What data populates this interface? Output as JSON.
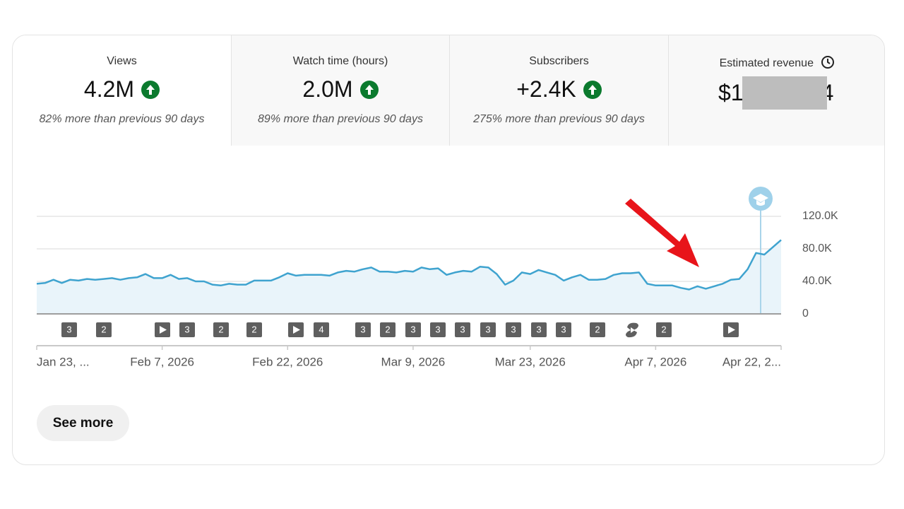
{
  "tabs": [
    {
      "title": "Views",
      "value": "4.2M",
      "comparison": "82% more than previous 90 days"
    },
    {
      "title": "Watch time (hours)",
      "value": "2.0M",
      "comparison": "89% more than previous 90 days"
    },
    {
      "title": "Subscribers",
      "value": "+2.4K",
      "comparison": "275% more than previous 90 days"
    },
    {
      "title": "Estimated revenue",
      "value_parts": [
        "$1",
        "4"
      ]
    }
  ],
  "chart_data": {
    "type": "line",
    "categories": [
      "Jan 23, ...",
      null,
      null,
      null,
      null,
      null,
      null,
      null,
      null,
      null,
      null,
      null,
      null,
      null,
      null,
      "Feb 7, 2026",
      null,
      null,
      null,
      null,
      null,
      null,
      null,
      null,
      null,
      null,
      null,
      null,
      null,
      null,
      "Feb 22, 2026",
      null,
      null,
      null,
      null,
      null,
      null,
      null,
      null,
      null,
      null,
      null,
      null,
      null,
      null,
      "Mar 9, 2026",
      null,
      null,
      null,
      null,
      null,
      null,
      null,
      null,
      null,
      null,
      null,
      null,
      null,
      "Mar 23, 2026",
      null,
      null,
      null,
      null,
      null,
      null,
      null,
      null,
      null,
      null,
      null,
      null,
      null,
      null,
      "Apr 7, 2026",
      null,
      null,
      null,
      null,
      null,
      null,
      null,
      null,
      null,
      null,
      null,
      null,
      null,
      null,
      "Apr 22, 2..."
    ],
    "values": [
      37000,
      38000,
      42000,
      38000,
      42000,
      41000,
      43000,
      42000,
      43000,
      44000,
      42000,
      44000,
      45000,
      49000,
      44000,
      44000,
      48000,
      43000,
      44000,
      40000,
      40000,
      36000,
      35000,
      37000,
      36000,
      36000,
      41000,
      41000,
      41000,
      45000,
      50000,
      47000,
      48000,
      48000,
      48000,
      47000,
      51000,
      53000,
      52000,
      55000,
      57000,
      52000,
      52000,
      51000,
      53000,
      52000,
      57000,
      55000,
      56000,
      48000,
      51000,
      53000,
      52000,
      58000,
      57000,
      49000,
      36000,
      41000,
      51000,
      49000,
      54000,
      51000,
      48000,
      41000,
      45000,
      48000,
      42000,
      42000,
      43000,
      48000,
      50000,
      50000,
      51000,
      37000,
      35000,
      35000,
      35000,
      32000,
      30000,
      34000,
      31000,
      34000,
      37000,
      42000,
      43000,
      55000,
      75000,
      73000,
      82000,
      91000
    ],
    "color": "#3fa3cf",
    "ylim": [
      0,
      120000
    ],
    "yticks": [
      0,
      {
        "value": 40000,
        "label": "40.0K"
      },
      {
        "value": 80000,
        "label": "80.0K"
      },
      {
        "value": 120000,
        "label": "120.0K"
      }
    ],
    "grid": true,
    "annotation_markers": [
      "3",
      "2",
      null,
      "3",
      "2",
      "2",
      null,
      "4",
      "3",
      "2",
      "3",
      "3",
      "3",
      "3",
      "3",
      "3",
      "3",
      "2",
      null,
      "2",
      null
    ]
  },
  "button": "See more"
}
